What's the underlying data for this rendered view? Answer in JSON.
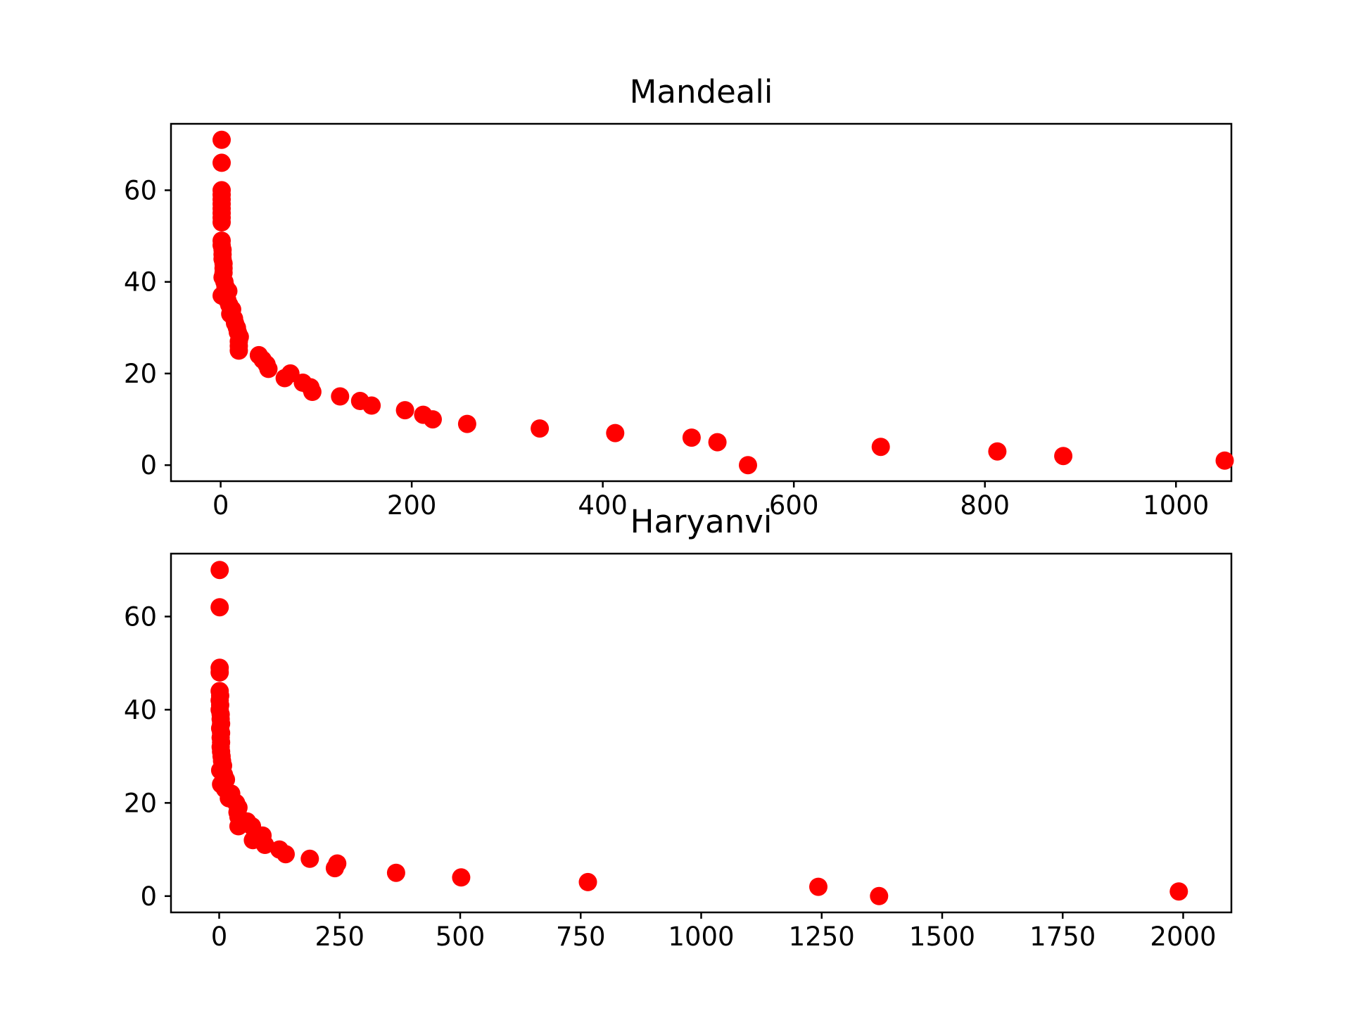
{
  "chart_data": [
    {
      "type": "scatter",
      "title": "Mandeali",
      "xlabel": "",
      "ylabel": "",
      "xlim": [
        -52,
        1058
      ],
      "ylim": [
        -3.5,
        74.5
      ],
      "xticks": [
        0,
        200,
        400,
        600,
        800,
        1000
      ],
      "yticks": [
        0,
        20,
        40,
        60
      ],
      "color": "#ff0000",
      "grid": false,
      "points": [
        [
          1,
          71
        ],
        [
          1,
          66
        ],
        [
          1,
          60
        ],
        [
          1,
          59
        ],
        [
          1,
          58
        ],
        [
          1,
          57
        ],
        [
          1,
          56
        ],
        [
          1,
          55
        ],
        [
          1,
          54
        ],
        [
          1,
          53
        ],
        [
          1,
          49
        ],
        [
          1,
          48
        ],
        [
          2,
          47
        ],
        [
          2,
          46
        ],
        [
          2,
          45
        ],
        [
          3,
          44
        ],
        [
          3,
          43
        ],
        [
          3,
          42
        ],
        [
          2,
          41
        ],
        [
          4,
          40
        ],
        [
          5,
          39
        ],
        [
          8,
          38
        ],
        [
          1,
          37
        ],
        [
          7,
          36
        ],
        [
          9,
          35
        ],
        [
          12,
          34
        ],
        [
          10,
          33
        ],
        [
          14,
          32
        ],
        [
          15,
          31
        ],
        [
          17,
          30
        ],
        [
          18,
          29
        ],
        [
          20,
          28
        ],
        [
          19,
          27
        ],
        [
          19,
          26
        ],
        [
          19,
          25
        ],
        [
          40,
          24
        ],
        [
          44,
          23
        ],
        [
          48,
          22
        ],
        [
          50,
          21
        ],
        [
          73,
          20
        ],
        [
          67,
          19
        ],
        [
          86,
          18
        ],
        [
          94,
          17
        ],
        [
          96,
          16
        ],
        [
          125,
          15
        ],
        [
          146,
          14
        ],
        [
          158,
          13
        ],
        [
          193,
          12
        ],
        [
          212,
          11
        ],
        [
          222,
          10
        ],
        [
          258,
          9
        ],
        [
          334,
          8
        ],
        [
          413,
          7
        ],
        [
          493,
          6
        ],
        [
          520,
          5
        ],
        [
          691,
          4
        ],
        [
          813,
          3
        ],
        [
          882,
          2
        ],
        [
          1051,
          1
        ],
        [
          552,
          0
        ]
      ]
    },
    {
      "type": "scatter",
      "title": "Haryanvi",
      "xlabel": "",
      "ylabel": "",
      "xlim": [
        -100,
        2100
      ],
      "ylim": [
        -3.5,
        73.5
      ],
      "xticks": [
        0,
        250,
        500,
        750,
        1000,
        1250,
        1500,
        1750,
        2000
      ],
      "yticks": [
        0,
        20,
        40,
        60
      ],
      "color": "#ff0000",
      "grid": false,
      "points": [
        [
          1,
          70
        ],
        [
          1,
          62
        ],
        [
          1,
          49
        ],
        [
          1,
          48
        ],
        [
          1,
          44
        ],
        [
          2,
          43
        ],
        [
          1,
          42
        ],
        [
          2,
          41
        ],
        [
          1,
          40
        ],
        [
          3,
          39
        ],
        [
          3,
          38
        ],
        [
          4,
          37
        ],
        [
          2,
          36
        ],
        [
          4,
          35
        ],
        [
          3,
          34
        ],
        [
          4,
          33
        ],
        [
          3,
          32
        ],
        [
          4,
          31
        ],
        [
          5,
          30
        ],
        [
          6,
          29
        ],
        [
          8,
          28
        ],
        [
          2,
          27
        ],
        [
          10,
          26
        ],
        [
          14,
          25
        ],
        [
          4,
          24
        ],
        [
          12,
          23
        ],
        [
          25,
          22
        ],
        [
          20,
          21
        ],
        [
          35,
          20
        ],
        [
          40,
          19
        ],
        [
          38,
          18
        ],
        [
          40,
          17
        ],
        [
          58,
          16
        ],
        [
          68,
          15
        ],
        [
          40,
          15
        ],
        [
          90,
          13
        ],
        [
          70,
          12
        ],
        [
          95,
          11
        ],
        [
          125,
          10
        ],
        [
          138,
          9
        ],
        [
          188,
          8
        ],
        [
          245,
          7
        ],
        [
          240,
          6
        ],
        [
          367,
          5
        ],
        [
          502,
          4
        ],
        [
          765,
          3
        ],
        [
          1243,
          2
        ],
        [
          1991,
          1
        ],
        [
          1369,
          0
        ]
      ]
    }
  ]
}
